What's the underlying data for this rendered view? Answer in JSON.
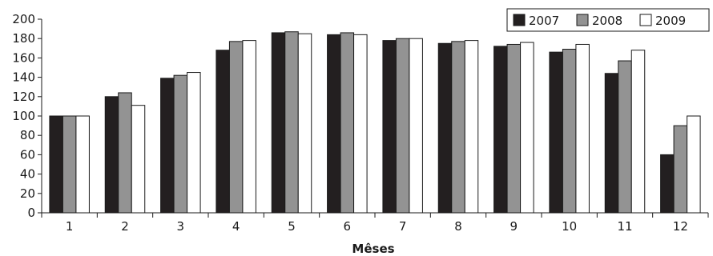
{
  "chart_data": {
    "type": "bar",
    "categories": [
      "1",
      "2",
      "3",
      "4",
      "5",
      "6",
      "7",
      "8",
      "9",
      "10",
      "11",
      "12"
    ],
    "series": [
      {
        "name": "2007",
        "color": "#231f20",
        "values": [
          100,
          120,
          139,
          168,
          186,
          184,
          178,
          175,
          172,
          166,
          144,
          60
        ]
      },
      {
        "name": "2008",
        "color": "#939393",
        "values": [
          100,
          124,
          142,
          177,
          187,
          186,
          180,
          177,
          174,
          169,
          157,
          90
        ]
      },
      {
        "name": "2009",
        "color": "#ffffff",
        "values": [
          100,
          111,
          145,
          178,
          185,
          184,
          180,
          178,
          176,
          174,
          168,
          100
        ]
      }
    ],
    "xlabel": "Mêses",
    "ylabel": "",
    "ylim": [
      0,
      200
    ],
    "yticks": [
      0,
      20,
      40,
      60,
      80,
      100,
      120,
      140,
      160,
      180,
      200
    ],
    "grid": false,
    "legend_position": "top-right"
  }
}
